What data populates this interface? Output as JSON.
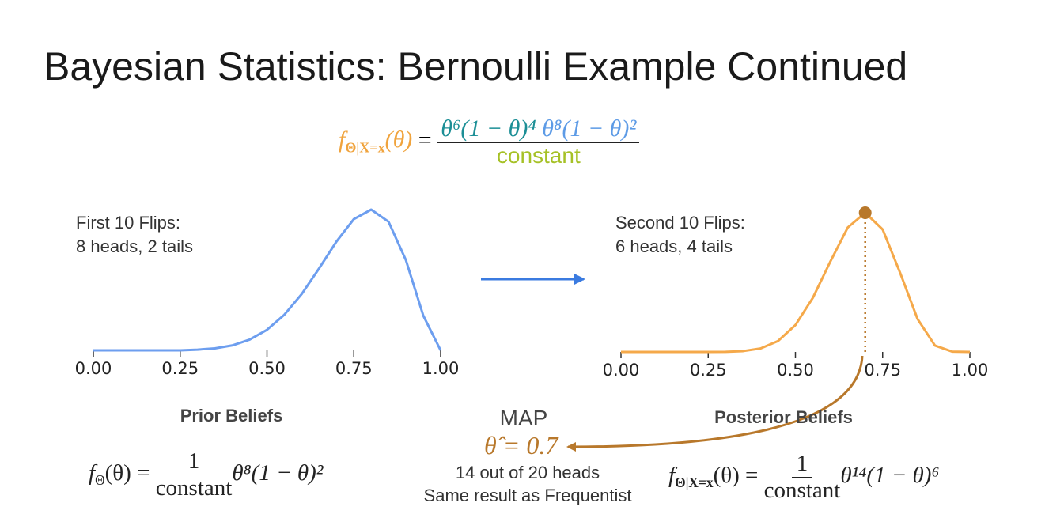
{
  "title": "Bayesian Statistics: Bernoulli Example Continued",
  "top_formula": {
    "lhs": "f",
    "lhs_sub": "Θ|X=x",
    "lhs_arg": "(θ)",
    "equals": "=",
    "numerator": [
      "θ⁶(1 − θ)⁴",
      "θ⁸(1 − θ)²"
    ],
    "denominator": "constant"
  },
  "map": {
    "label": "MAP",
    "estimate": "θ̂ = 0.7",
    "notes": [
      "14 out of 20 heads",
      "Same result as Frequentist"
    ]
  },
  "prior_formula": {
    "lhs": "f",
    "lhs_sub": "Θ",
    "lhs_arg": "(θ) =",
    "numerator": "1",
    "denominator": "constant",
    "tail": "θ⁸(1 − θ)²"
  },
  "posterior_formula": {
    "lhs": "f",
    "lhs_sub": "Θ|X=x",
    "lhs_arg": "(θ) =",
    "numerator": "1",
    "denominator": "constant",
    "tail": "θ¹⁴(1 − θ)⁶"
  },
  "chart_data": [
    {
      "type": "line",
      "title": "Prior Beliefs",
      "annotation": [
        "First 10 Flips:",
        "8 heads, 2 tails"
      ],
      "color": "#6d9eef",
      "x": [
        0,
        0.05,
        0.1,
        0.15,
        0.2,
        0.25,
        0.3,
        0.35,
        0.4,
        0.45,
        0.5,
        0.55,
        0.6,
        0.65,
        0.7,
        0.75,
        0.8,
        0.85,
        0.9,
        0.95,
        1
      ],
      "values": [
        0,
        0,
        0,
        0,
        0,
        0,
        0.005,
        0.014,
        0.035,
        0.076,
        0.146,
        0.253,
        0.4,
        0.582,
        0.773,
        0.932,
        1,
        0.914,
        0.641,
        0.247,
        0
      ],
      "xlim": [
        0,
        1
      ],
      "ylim": [
        0,
        1
      ],
      "xticks": [
        {
          "value": 0,
          "label": "0.00"
        },
        {
          "value": 0.25,
          "label": "0.25"
        },
        {
          "value": 0.5,
          "label": "0.50"
        },
        {
          "value": 0.75,
          "label": "0.75"
        },
        {
          "value": 1,
          "label": "1.00"
        }
      ]
    },
    {
      "type": "line",
      "title": "Posterior Beliefs",
      "annotation": [
        "Second 10 Flips:",
        "6 heads, 4 tails"
      ],
      "color": "#f5a94a",
      "x": [
        0,
        0.05,
        0.1,
        0.15,
        0.2,
        0.25,
        0.3,
        0.35,
        0.4,
        0.45,
        0.5,
        0.55,
        0.6,
        0.65,
        0.7,
        0.75,
        0.8,
        0.85,
        0.9,
        0.95,
        1
      ],
      "values": [
        0,
        0,
        0,
        0,
        0,
        0,
        0.001,
        0.006,
        0.025,
        0.078,
        0.193,
        0.389,
        0.649,
        0.894,
        1,
        0.88,
        0.569,
        0.237,
        0.046,
        0.002,
        0
      ],
      "xlim": [
        0,
        1
      ],
      "ylim": [
        0,
        1
      ],
      "xticks": [
        {
          "value": 0,
          "label": "0.00"
        },
        {
          "value": 0.25,
          "label": "0.25"
        },
        {
          "value": 0.5,
          "label": "0.50"
        },
        {
          "value": 0.75,
          "label": "0.75"
        },
        {
          "value": 1,
          "label": "1.00"
        }
      ]
    }
  ]
}
